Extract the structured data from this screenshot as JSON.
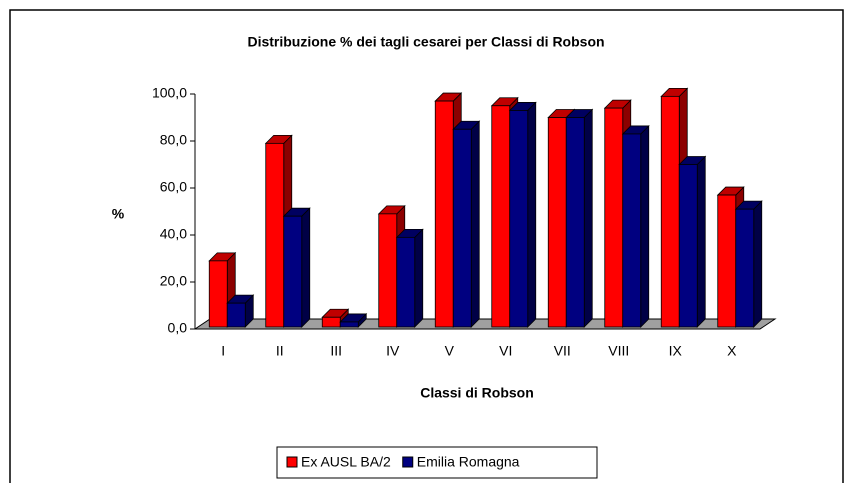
{
  "chart_data": {
    "type": "bar3d",
    "title": "Distribuzione % dei tagli cesarei per Classi di Robson",
    "x_label": "Classi di Robson",
    "y_label": "%",
    "categories": [
      "I",
      "II",
      "III",
      "IV",
      "V",
      "VI",
      "VII",
      "VIII",
      "IX",
      "X"
    ],
    "series": [
      {
        "name": "Ex AUSL BA/2",
        "color": "#ff0000",
        "values": [
          29,
          79,
          5,
          49,
          97,
          95,
          90,
          94,
          99,
          57
        ]
      },
      {
        "name": "Emilia Romagna",
        "color": "#000080",
        "values": [
          11,
          48,
          3,
          39,
          85,
          93,
          90,
          83,
          70,
          51
        ]
      }
    ],
    "ylim": [
      0,
      100
    ],
    "yticks": [
      {
        "value": 0,
        "label": "0,0"
      },
      {
        "value": 20,
        "label": "20,0"
      },
      {
        "value": 40,
        "label": "40,0"
      },
      {
        "value": 60,
        "label": "60,0"
      },
      {
        "value": 80,
        "label": "80,0"
      },
      {
        "value": 100,
        "label": "100,0"
      }
    ],
    "legend": "bottom"
  }
}
